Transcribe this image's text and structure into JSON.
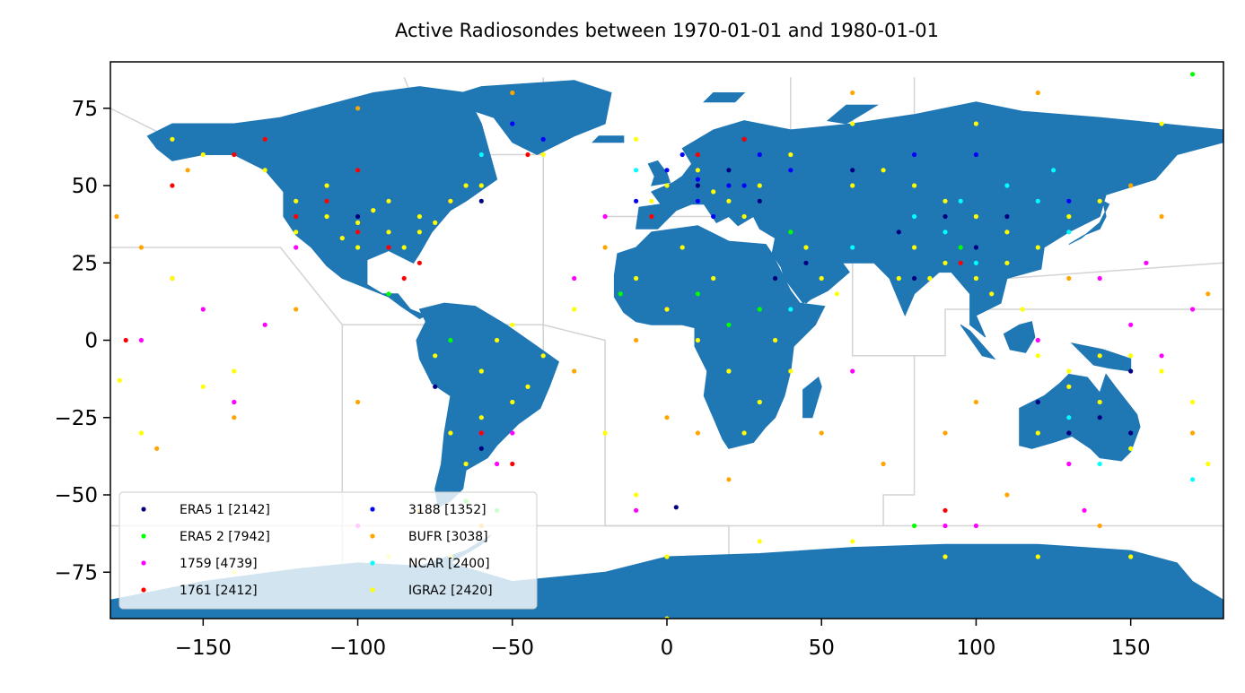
{
  "chart_data": {
    "type": "scatter",
    "title": "Active Radiosondes between 1970-01-01 and 1980-01-01",
    "xlabel": "",
    "ylabel": "",
    "xlim": [
      -180,
      180
    ],
    "ylim": [
      -90,
      90
    ],
    "xticks": [
      -150,
      -100,
      -50,
      0,
      50,
      100,
      150
    ],
    "xtick_labels": [
      "−150",
      "−100",
      "−50",
      "0",
      "50",
      "100",
      "150"
    ],
    "yticks": [
      75,
      50,
      25,
      0,
      -25,
      -50,
      -75
    ],
    "ytick_labels": [
      "75",
      "50",
      "25",
      "0",
      "−25",
      "−50",
      "−75"
    ],
    "grid": false,
    "legend_position": "lower-left",
    "background_map": {
      "land_color": "#1f77b4",
      "border_color": "#d3d3d3"
    },
    "series": [
      {
        "name": "ERA5 1 [2142]",
        "color": "#000080",
        "points": [
          [
            -60,
            45
          ],
          [
            -100,
            40
          ],
          [
            10,
            50
          ],
          [
            20,
            55
          ],
          [
            30,
            45
          ],
          [
            90,
            40
          ],
          [
            100,
            30
          ],
          [
            140,
            -25
          ],
          [
            150,
            -30
          ],
          [
            120,
            -20
          ],
          [
            35,
            20
          ],
          [
            80,
            20
          ],
          [
            45,
            25
          ],
          [
            130,
            -30
          ],
          [
            25,
            65
          ],
          [
            75,
            35
          ],
          [
            150,
            -10
          ],
          [
            60,
            55
          ],
          [
            110,
            40
          ],
          [
            3,
            -54
          ],
          [
            -75,
            -15
          ],
          [
            -60,
            -35
          ]
        ]
      },
      {
        "name": "ERA5 2 [7942]",
        "color": "#00ff00",
        "points": [
          [
            -70,
            0
          ],
          [
            -60,
            -10
          ],
          [
            10,
            15
          ],
          [
            30,
            10
          ],
          [
            -65,
            -52
          ],
          [
            170,
            86
          ],
          [
            -55,
            -55
          ],
          [
            20,
            5
          ],
          [
            -90,
            15
          ],
          [
            40,
            35
          ],
          [
            95,
            30
          ],
          [
            -15,
            15
          ],
          [
            80,
            -60
          ]
        ]
      },
      {
        "name": "1759 [4739]",
        "color": "#ff00ff",
        "points": [
          [
            -160,
            20
          ],
          [
            -150,
            10
          ],
          [
            -170,
            0
          ],
          [
            -140,
            -20
          ],
          [
            -100,
            -60
          ],
          [
            -60,
            -30
          ],
          [
            -55,
            -40
          ],
          [
            100,
            -60
          ],
          [
            150,
            5
          ],
          [
            160,
            -5
          ],
          [
            170,
            10
          ],
          [
            140,
            20
          ],
          [
            130,
            -40
          ],
          [
            -120,
            30
          ],
          [
            -20,
            40
          ],
          [
            0,
            10
          ],
          [
            90,
            -60
          ],
          [
            -30,
            20
          ],
          [
            -10,
            -55
          ],
          [
            60,
            -10
          ],
          [
            -50,
            -30
          ],
          [
            135,
            -55
          ],
          [
            155,
            25
          ],
          [
            120,
            0
          ],
          [
            -130,
            5
          ]
        ]
      },
      {
        "name": "1761 [2412]",
        "color": "#ff0000",
        "points": [
          [
            -120,
            40
          ],
          [
            -110,
            45
          ],
          [
            -100,
            35
          ],
          [
            -90,
            30
          ],
          [
            -80,
            25
          ],
          [
            -70,
            45
          ],
          [
            -60,
            -30
          ],
          [
            95,
            25
          ],
          [
            10,
            60
          ],
          [
            -45,
            60
          ],
          [
            -175,
            0
          ],
          [
            -140,
            60
          ],
          [
            -130,
            65
          ],
          [
            -100,
            55
          ],
          [
            -85,
            20
          ],
          [
            90,
            -55
          ],
          [
            25,
            65
          ],
          [
            -160,
            50
          ],
          [
            -50,
            -40
          ],
          [
            -5,
            40
          ]
        ]
      },
      {
        "name": "3188 [1352]",
        "color": "#0000ff",
        "points": [
          [
            0,
            55
          ],
          [
            10,
            52
          ],
          [
            20,
            50
          ],
          [
            30,
            60
          ],
          [
            -50,
            70
          ],
          [
            -40,
            65
          ],
          [
            10,
            45
          ],
          [
            15,
            40
          ],
          [
            25,
            50
          ],
          [
            40,
            55
          ],
          [
            80,
            60
          ],
          [
            100,
            60
          ],
          [
            130,
            45
          ],
          [
            -10,
            45
          ],
          [
            5,
            60
          ]
        ]
      },
      {
        "name": "BUFR [3038]",
        "color": "#ffa500",
        "points": [
          [
            -178,
            40
          ],
          [
            -170,
            30
          ],
          [
            -165,
            -35
          ],
          [
            -140,
            -25
          ],
          [
            -120,
            10
          ],
          [
            -100,
            -20
          ],
          [
            -60,
            -60
          ],
          [
            -30,
            -10
          ],
          [
            0,
            -25
          ],
          [
            20,
            -45
          ],
          [
            50,
            -30
          ],
          [
            70,
            -40
          ],
          [
            90,
            -30
          ],
          [
            110,
            -50
          ],
          [
            140,
            -60
          ],
          [
            170,
            -30
          ],
          [
            175,
            15
          ],
          [
            160,
            40
          ],
          [
            150,
            50
          ],
          [
            120,
            80
          ],
          [
            -50,
            80
          ],
          [
            -100,
            75
          ],
          [
            60,
            80
          ],
          [
            100,
            -20
          ],
          [
            -10,
            0
          ],
          [
            10,
            -30
          ],
          [
            -20,
            30
          ],
          [
            130,
            20
          ],
          [
            -155,
            55
          ],
          [
            -80,
            -55
          ]
        ]
      },
      {
        "name": "NCAR [2400]",
        "color": "#00ffff",
        "points": [
          [
            110,
            50
          ],
          [
            120,
            45
          ],
          [
            90,
            35
          ],
          [
            100,
            25
          ],
          [
            130,
            35
          ],
          [
            80,
            40
          ],
          [
            140,
            -40
          ],
          [
            150,
            -35
          ],
          [
            30,
            -20
          ],
          [
            40,
            10
          ],
          [
            60,
            30
          ],
          [
            20,
            -10
          ],
          [
            -10,
            55
          ],
          [
            170,
            -45
          ],
          [
            -60,
            60
          ],
          [
            130,
            -25
          ],
          [
            125,
            55
          ],
          [
            95,
            45
          ]
        ]
      },
      {
        "name": "IGRA2 [2420]",
        "color": "#ffff00",
        "points": [
          [
            -120,
            45
          ],
          [
            -110,
            40
          ],
          [
            -100,
            38
          ],
          [
            -90,
            35
          ],
          [
            -80,
            40
          ],
          [
            -70,
            45
          ],
          [
            -100,
            30
          ],
          [
            -90,
            45
          ],
          [
            -80,
            35
          ],
          [
            -110,
            50
          ],
          [
            -120,
            35
          ],
          [
            -95,
            42
          ],
          [
            -85,
            30
          ],
          [
            -75,
            38
          ],
          [
            -105,
            33
          ],
          [
            -65,
            50
          ],
          [
            -60,
            -10
          ],
          [
            -50,
            -20
          ],
          [
            -70,
            -30
          ],
          [
            -55,
            0
          ],
          [
            -45,
            -15
          ],
          [
            -75,
            -5
          ],
          [
            -65,
            -40
          ],
          [
            -60,
            -25
          ],
          [
            -40,
            -5
          ],
          [
            -50,
            5
          ],
          [
            0,
            10
          ],
          [
            10,
            0
          ],
          [
            20,
            -10
          ],
          [
            30,
            -20
          ],
          [
            25,
            -30
          ],
          [
            15,
            20
          ],
          [
            35,
            0
          ],
          [
            40,
            -10
          ],
          [
            5,
            30
          ],
          [
            -10,
            20
          ],
          [
            0,
            50
          ],
          [
            10,
            55
          ],
          [
            20,
            45
          ],
          [
            30,
            50
          ],
          [
            40,
            60
          ],
          [
            15,
            48
          ],
          [
            25,
            40
          ],
          [
            -5,
            45
          ],
          [
            60,
            50
          ],
          [
            70,
            55
          ],
          [
            80,
            50
          ],
          [
            90,
            45
          ],
          [
            100,
            40
          ],
          [
            110,
            35
          ],
          [
            120,
            30
          ],
          [
            80,
            30
          ],
          [
            90,
            25
          ],
          [
            100,
            20
          ],
          [
            105,
            15
          ],
          [
            110,
            25
          ],
          [
            130,
            40
          ],
          [
            140,
            45
          ],
          [
            75,
            20
          ],
          [
            85,
            20
          ],
          [
            115,
            10
          ],
          [
            120,
            -5
          ],
          [
            130,
            -10
          ],
          [
            140,
            -5
          ],
          [
            150,
            -5
          ],
          [
            120,
            -30
          ],
          [
            140,
            -20
          ],
          [
            150,
            -35
          ],
          [
            130,
            -15
          ],
          [
            -150,
            -15
          ],
          [
            -160,
            20
          ],
          [
            -140,
            -10
          ],
          [
            -170,
            -30
          ],
          [
            -177,
            -13
          ],
          [
            -30,
            10
          ],
          [
            -20,
            -30
          ],
          [
            -10,
            -50
          ],
          [
            0,
            -70
          ],
          [
            30,
            -65
          ],
          [
            60,
            -65
          ],
          [
            90,
            -70
          ],
          [
            120,
            -70
          ],
          [
            150,
            -70
          ],
          [
            -70,
            -70
          ],
          [
            -90,
            -70
          ],
          [
            -140,
            -75
          ],
          [
            160,
            70
          ],
          [
            100,
            70
          ],
          [
            60,
            70
          ],
          [
            -40,
            60
          ],
          [
            -60,
            50
          ],
          [
            -10,
            65
          ],
          [
            175,
            -40
          ],
          [
            170,
            -20
          ],
          [
            160,
            -10
          ],
          [
            45,
            30
          ],
          [
            50,
            20
          ],
          [
            55,
            15
          ],
          [
            -130,
            55
          ],
          [
            -150,
            60
          ],
          [
            -160,
            65
          ],
          [
            0,
            -90
          ]
        ]
      }
    ]
  }
}
